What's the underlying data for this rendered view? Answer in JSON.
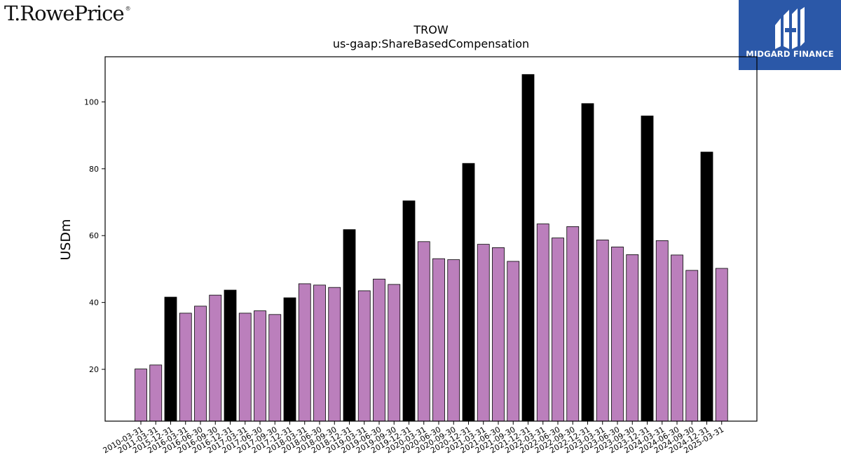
{
  "brand": {
    "name": "T.RowePrice",
    "registered": "®"
  },
  "badge": {
    "name": "MIDGARD FINANCE",
    "icon": "midgard-m-icon",
    "color": "#2b58a8"
  },
  "chart_data": {
    "type": "bar",
    "title": "TROW",
    "subtitle": "us-gaap:ShareBasedCompensation",
    "xlabel": "",
    "ylabel": "USDm",
    "ylim": [
      4.5,
      113.5
    ],
    "yticks": [
      20,
      40,
      60,
      80,
      100
    ],
    "grid": false,
    "categories": [
      "2010-03-31",
      "2011-03-31",
      "2015-12-31",
      "2016-03-31",
      "2016-06-30",
      "2016-09-30",
      "2016-12-31",
      "2017-03-31",
      "2017-06-30",
      "2017-09-30",
      "2017-12-31",
      "2018-03-31",
      "2018-06-30",
      "2018-09-30",
      "2018-12-31",
      "2019-03-31",
      "2019-06-30",
      "2019-09-30",
      "2019-12-31",
      "2020-03-31",
      "2020-06-30",
      "2020-09-30",
      "2020-12-31",
      "2021-03-31",
      "2021-06-30",
      "2021-09-30",
      "2021-12-31",
      "2022-03-31",
      "2022-06-30",
      "2022-09-30",
      "2022-12-31",
      "2023-03-31",
      "2023-06-30",
      "2023-09-30",
      "2023-12-31",
      "2024-03-31",
      "2024-06-30",
      "2024-09-30",
      "2024-12-31",
      "2025-03-31"
    ],
    "values": [
      20.1,
      21.3,
      41.6,
      36.8,
      38.9,
      42.2,
      43.7,
      36.8,
      37.5,
      36.4,
      41.4,
      45.6,
      45.2,
      44.5,
      61.8,
      43.5,
      47.0,
      45.4,
      70.4,
      58.2,
      53.1,
      52.8,
      81.6,
      57.4,
      56.4,
      52.3,
      108.2,
      63.5,
      59.3,
      62.7,
      99.5,
      58.7,
      56.6,
      54.3,
      95.8,
      58.5,
      54.2,
      49.6,
      85.0,
      50.2
    ],
    "annual_flags": [
      false,
      false,
      true,
      false,
      false,
      false,
      true,
      false,
      false,
      false,
      true,
      false,
      false,
      false,
      true,
      false,
      false,
      false,
      true,
      false,
      false,
      false,
      true,
      false,
      false,
      false,
      true,
      false,
      false,
      false,
      true,
      false,
      false,
      false,
      true,
      false,
      false,
      false,
      true,
      false
    ],
    "colors": {
      "quarterly": "#bb7fbc",
      "annual": "#000000",
      "edge": "#000000"
    }
  }
}
